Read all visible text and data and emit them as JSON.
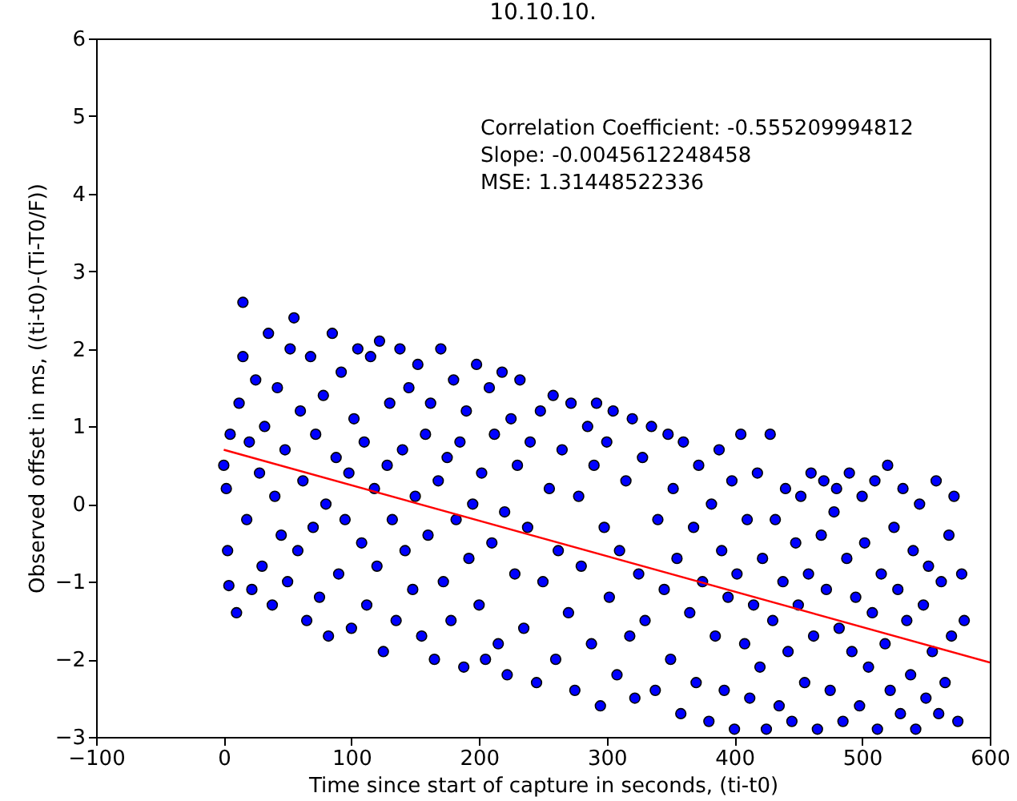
{
  "chart_data": {
    "type": "scatter",
    "title": "10.10.10.",
    "xlabel": "Time since start of capture in seconds, (ti-t0)",
    "ylabel": "Observed offset in ms, ((ti-t0)-(Ti-T0/F))",
    "annotations": [
      "Correlation Coefficient: -0.555209994812",
      "Slope: -0.0045612248458",
      "MSE: 1.31448522336"
    ],
    "xlim": [
      -100,
      600
    ],
    "xticks": [
      -100,
      0,
      100,
      200,
      300,
      400,
      500,
      600
    ],
    "ylim": [
      -3,
      6
    ],
    "yticks": [
      -3,
      -2,
      -1,
      0,
      1,
      2,
      3,
      4,
      5,
      6
    ],
    "marker": "circle",
    "series": [
      {
        "color": "#0000ff",
        "x": [
          0,
          2,
          3,
          4,
          5,
          10,
          12,
          15,
          15,
          18,
          20,
          22,
          25,
          28,
          30,
          32,
          35,
          38,
          40,
          42,
          45,
          48,
          50,
          52,
          55,
          58,
          60,
          62,
          65,
          68,
          70,
          72,
          75,
          78,
          80,
          82,
          85,
          88,
          90,
          92,
          95,
          98,
          100,
          102,
          105,
          108,
          110,
          112,
          115,
          118,
          120,
          122,
          125,
          128,
          130,
          132,
          135,
          138,
          140,
          142,
          145,
          148,
          150,
          152,
          155,
          158,
          160,
          162,
          165,
          168,
          170,
          172,
          175,
          178,
          180,
          182,
          185,
          188,
          190,
          192,
          195,
          198,
          200,
          202,
          205,
          208,
          210,
          212,
          215,
          218,
          220,
          222,
          225,
          228,
          230,
          232,
          235,
          238,
          240,
          245,
          248,
          250,
          255,
          258,
          260,
          262,
          265,
          270,
          272,
          275,
          278,
          280,
          285,
          288,
          290,
          292,
          295,
          298,
          300,
          302,
          305,
          308,
          310,
          315,
          318,
          320,
          322,
          325,
          328,
          330,
          335,
          338,
          340,
          345,
          348,
          350,
          352,
          355,
          358,
          360,
          365,
          368,
          370,
          372,
          375,
          380,
          382,
          385,
          388,
          390,
          392,
          395,
          398,
          400,
          402,
          405,
          408,
          410,
          412,
          415,
          418,
          420,
          422,
          425,
          428,
          430,
          432,
          435,
          438,
          440,
          442,
          445,
          448,
          450,
          452,
          455,
          458,
          460,
          462,
          465,
          468,
          470,
          472,
          475,
          478,
          480,
          482,
          485,
          488,
          490,
          492,
          495,
          498,
          500,
          502,
          505,
          508,
          510,
          512,
          515,
          518,
          520,
          522,
          525,
          528,
          530,
          532,
          535,
          538,
          540,
          542,
          545,
          548,
          550,
          552,
          555,
          558,
          560,
          562,
          565,
          568,
          570,
          572,
          575,
          578,
          580
        ],
        "values": [
          0.5,
          0.2,
          -0.6,
          -1.05,
          0.9,
          -1.4,
          1.3,
          2.6,
          1.9,
          -0.2,
          0.8,
          -1.1,
          1.6,
          0.4,
          -0.8,
          1.0,
          2.2,
          -1.3,
          0.1,
          1.5,
          -0.4,
          0.7,
          -1.0,
          2.0,
          2.4,
          -0.6,
          1.2,
          0.3,
          -1.5,
          1.9,
          -0.3,
          0.9,
          -1.2,
          1.4,
          0.0,
          -1.7,
          2.2,
          0.6,
          -0.9,
          1.7,
          -0.2,
          0.4,
          -1.6,
          1.1,
          2.0,
          -0.5,
          0.8,
          -1.3,
          1.9,
          0.2,
          -0.8,
          2.1,
          -1.9,
          0.5,
          1.3,
          -0.2,
          -1.5,
          2.0,
          0.7,
          -0.6,
          1.5,
          -1.1,
          0.1,
          1.8,
          -1.7,
          0.9,
          -0.4,
          1.3,
          -2.0,
          0.3,
          2.0,
          -1.0,
          0.6,
          -1.5,
          1.6,
          -0.2,
          0.8,
          -2.1,
          1.2,
          -0.7,
          0.0,
          1.8,
          -1.3,
          0.4,
          -2.0,
          1.5,
          -0.5,
          0.9,
          -1.8,
          1.7,
          -0.1,
          -2.2,
          1.1,
          -0.9,
          0.5,
          1.6,
          -1.6,
          -0.3,
          0.8,
          -2.3,
          1.2,
          -1.0,
          0.2,
          1.4,
          -2.0,
          -0.6,
          0.7,
          -1.4,
          1.3,
          -2.4,
          0.1,
          -0.8,
          1.0,
          -1.8,
          0.5,
          1.3,
          -2.6,
          -0.3,
          0.8,
          -1.2,
          1.2,
          -2.2,
          -0.6,
          0.3,
          -1.7,
          1.1,
          -2.5,
          -0.9,
          0.6,
          -1.5,
          1.0,
          -2.4,
          -0.2,
          -1.1,
          0.9,
          -2.0,
          0.2,
          -0.7,
          -2.7,
          0.8,
          -1.4,
          -0.3,
          -2.3,
          0.5,
          -1.0,
          -2.8,
          0.0,
          -1.7,
          0.7,
          -0.6,
          -2.4,
          -1.2,
          0.3,
          -2.9,
          -0.9,
          0.9,
          -1.8,
          -0.2,
          -2.5,
          -1.3,
          0.4,
          -2.1,
          -0.7,
          -2.9,
          0.9,
          -1.5,
          -0.2,
          -2.6,
          -1.0,
          0.2,
          -1.9,
          -2.8,
          -0.5,
          -1.3,
          0.1,
          -2.3,
          -0.9,
          0.4,
          -1.7,
          -2.9,
          -0.4,
          0.3,
          -1.1,
          -2.4,
          -0.1,
          0.2,
          -1.6,
          -2.8,
          -0.7,
          0.4,
          -1.9,
          -1.2,
          -2.6,
          0.1,
          -0.5,
          -2.1,
          -1.4,
          0.3,
          -2.9,
          -0.9,
          -1.8,
          0.5,
          -2.4,
          -0.3,
          -1.1,
          -2.7,
          0.2,
          -1.5,
          -2.2,
          -0.6,
          -2.9,
          0.0,
          -1.3,
          -2.5,
          -0.8,
          -1.9,
          0.3,
          -2.7,
          -1.0,
          -2.3,
          -0.4,
          -1.7,
          0.1,
          -2.8,
          -0.9,
          -1.5
        ]
      },
      {
        "type": "line",
        "marker": "none",
        "color": "#ff0000",
        "x": [
          0,
          600
        ],
        "values": [
          0.7,
          -2.04
        ]
      }
    ]
  }
}
